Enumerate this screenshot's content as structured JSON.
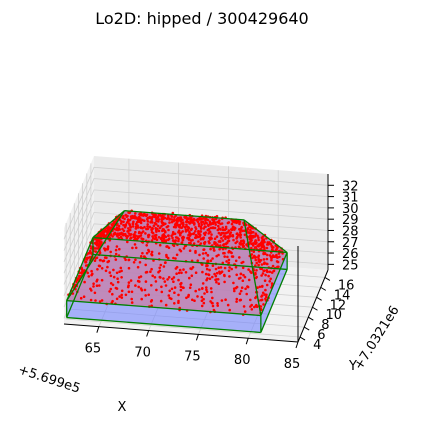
{
  "chart_data": {
    "type": "3d-scatter-surface",
    "title": "Lo2D: hipped / 300429640",
    "xlabel": "X",
    "ylabel": "Y",
    "x_offset_label": "+5.699e5",
    "y_offset_label": "+7.0321e6",
    "x_ticks": [
      "65",
      "70",
      "75",
      "80",
      "85"
    ],
    "y_ticks": [
      "4",
      "6",
      "8",
      "10",
      "12",
      "14",
      "16"
    ],
    "z_ticks": [
      "25",
      "26",
      "27",
      "28",
      "29",
      "30",
      "31",
      "32"
    ],
    "xlim": [
      61.5,
      85
    ],
    "ylim": [
      3,
      17.5
    ],
    "zlim": [
      24.5,
      33
    ],
    "grid": true,
    "roof": {
      "eave_height": 26,
      "ridge_height": 31.5,
      "eave_corners": [
        [
          61.5,
          4.3
        ],
        [
          61.5,
          17
        ],
        [
          81,
          17
        ],
        [
          81,
          4.3
        ]
      ],
      "ridge": [
        [
          66,
          10.6
        ],
        [
          78,
          10.6
        ]
      ]
    },
    "colors": {
      "points": "#ff0000",
      "roof_fill": "#c080b0",
      "wall_fill": "#7080ff",
      "edges": "#008000"
    }
  }
}
